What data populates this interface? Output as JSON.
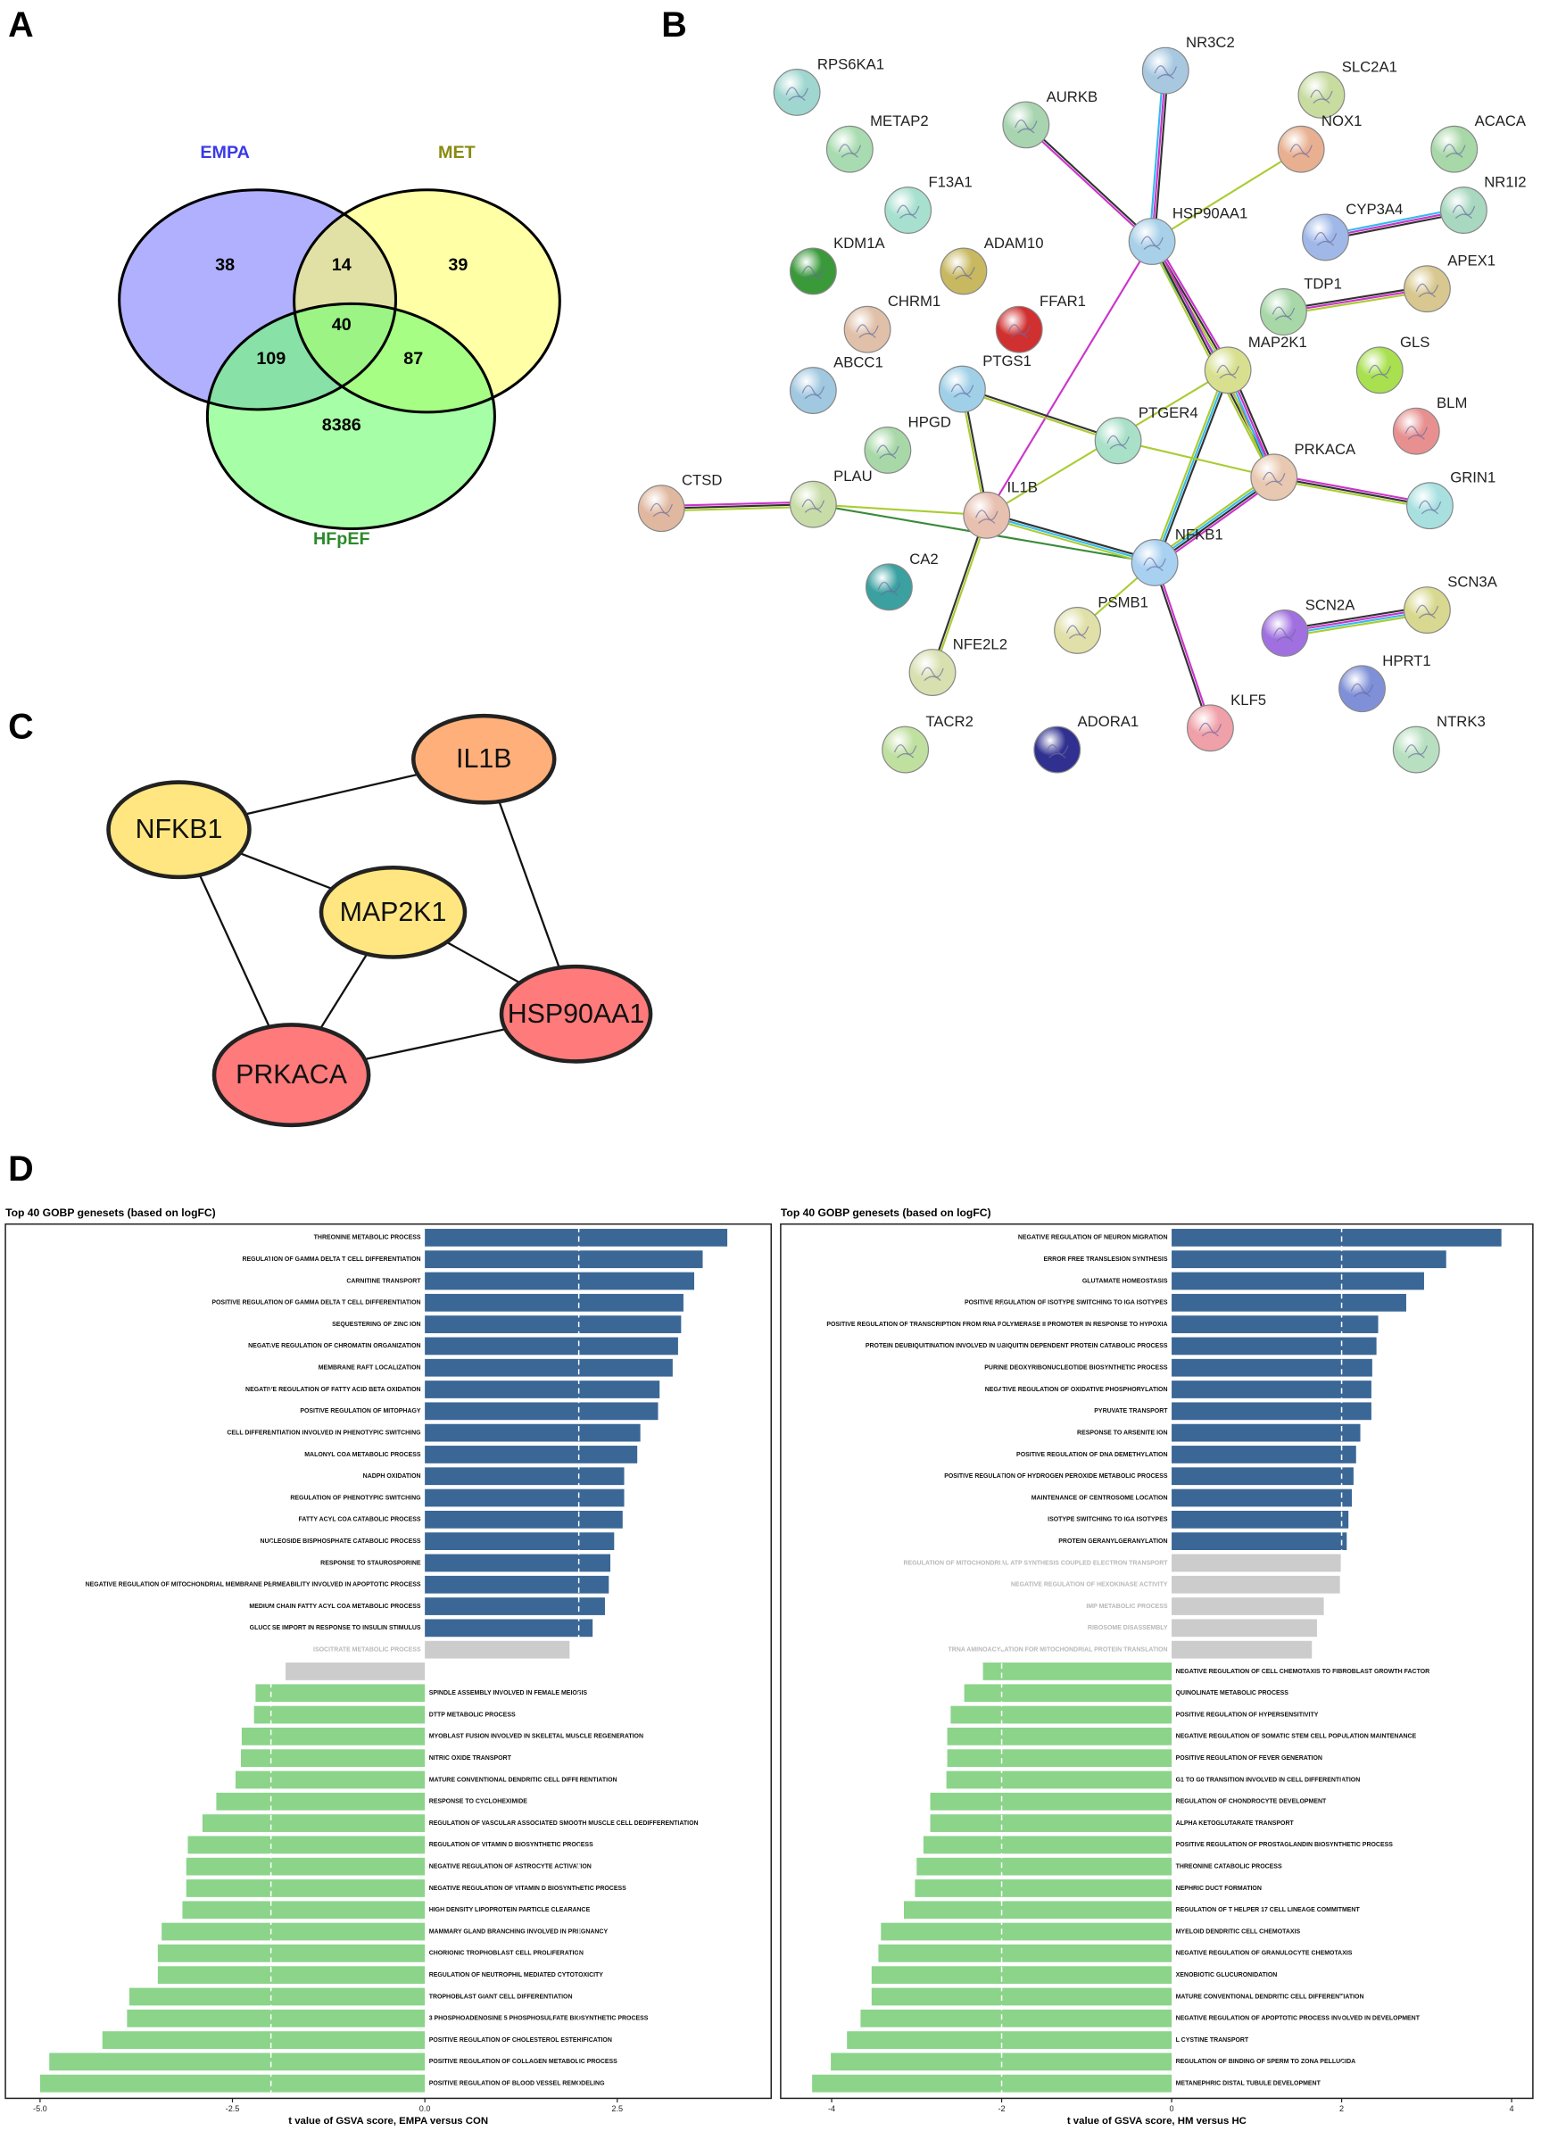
{
  "panel_labels": [
    "A",
    "B",
    "C",
    "D"
  ],
  "chart_data": [
    {
      "type": "venn",
      "sets": [
        {
          "name": "EMPA",
          "color": "#7f7fff",
          "label_color": "#3a3ae8"
        },
        {
          "name": "MET",
          "color": "#ffff70",
          "label_color": "#8a8a10"
        },
        {
          "name": "HFpEF",
          "color": "#70ff70",
          "label_color": "#2a8a2a"
        }
      ],
      "values": [
        38,
        14,
        39,
        40,
        109,
        87,
        8386
      ]
    },
    {
      "type": "network",
      "nodes": [
        {
          "label": "RPS6KA1",
          "color": "#9fd6d0"
        },
        {
          "label": "METAP2",
          "color": "#a8dcb0"
        },
        {
          "label": "AURKB",
          "color": "#a8d4b0"
        },
        {
          "label": "NR3C2",
          "color": "#a8c8e0"
        },
        {
          "label": "SLC2A1",
          "color": "#c8dca0"
        },
        {
          "label": "NOX1",
          "color": "#e8b090"
        },
        {
          "label": "ACACA",
          "color": "#a8d8a8"
        },
        {
          "label": "NR1I2",
          "color": "#a8d8c0"
        },
        {
          "label": "F13A1",
          "color": "#a8e0d0"
        },
        {
          "label": "HSP90AA1",
          "color": "#a8d0e8"
        },
        {
          "label": "CYP3A4",
          "color": "#a0b8e8"
        },
        {
          "label": "KDM1A",
          "color": "#3a9a3a"
        },
        {
          "label": "ADAM10",
          "color": "#c8b860"
        },
        {
          "label": "APEX1",
          "color": "#d8c890"
        },
        {
          "label": "CHRM1",
          "color": "#e0c0a8"
        },
        {
          "label": "FFAR1",
          "color": "#d03030"
        },
        {
          "label": "TDP1",
          "color": "#a8d8a8"
        },
        {
          "label": "MAP2K1",
          "color": "#d8e090"
        },
        {
          "label": "GLS",
          "color": "#a8e050"
        },
        {
          "label": "ABCC1",
          "color": "#a0c8e0"
        },
        {
          "label": "PTGS1",
          "color": "#a0d0e8"
        },
        {
          "label": "BLM",
          "color": "#e89090"
        },
        {
          "label": "HPGD",
          "color": "#a8d8a8"
        },
        {
          "label": "PTGER4",
          "color": "#a8e0c8"
        },
        {
          "label": "PRKACA",
          "color": "#e8c8b0"
        },
        {
          "label": "GRIN1",
          "color": "#a8e0e0"
        },
        {
          "label": "CTSD",
          "color": "#e0b8a0"
        },
        {
          "label": "PLAU",
          "color": "#c8dca8"
        },
        {
          "label": "IL1B",
          "color": "#e8c0b0"
        },
        {
          "label": "NFKB1",
          "color": "#a8d0f0"
        },
        {
          "label": "CA2",
          "color": "#3aa0a0"
        },
        {
          "label": "SCN2A",
          "color": "#a070e0"
        },
        {
          "label": "SCN3A",
          "color": "#d8d890"
        },
        {
          "label": "PSMB1",
          "color": "#e0e0a8"
        },
        {
          "label": "HPRT1",
          "color": "#8090d8"
        },
        {
          "label": "NFE2L2",
          "color": "#d8e0b0"
        },
        {
          "label": "KLF5",
          "color": "#f0a0a8"
        },
        {
          "label": "TACR2",
          "color": "#c0e0a0"
        },
        {
          "label": "ADORA1",
          "color": "#303090"
        },
        {
          "label": "NTRK3",
          "color": "#b8e0c0"
        }
      ],
      "edges": [
        {
          "source": 3,
          "target": 9,
          "colors": [
            "#333333",
            "#cc33cc",
            "#33bbee"
          ]
        },
        {
          "source": 2,
          "target": 9,
          "colors": [
            "#333333",
            "#cc33cc"
          ]
        },
        {
          "source": 5,
          "target": 9,
          "colors": [
            "#aacc33"
          ]
        },
        {
          "source": 7,
          "target": 10,
          "colors": [
            "#333333",
            "#cc33cc",
            "#33bbee"
          ]
        },
        {
          "source": 9,
          "target": 17,
          "colors": [
            "#cc33cc",
            "#333333",
            "#aacc33",
            "#33bbee"
          ]
        },
        {
          "source": 9,
          "target": 24,
          "colors": [
            "#cc33cc",
            "#333333",
            "#aacc33"
          ]
        },
        {
          "source": 9,
          "target": 28,
          "colors": [
            "#cc33cc"
          ]
        },
        {
          "source": 16,
          "target": 13,
          "colors": [
            "#333333",
            "#cc33cc",
            "#aacc33"
          ]
        },
        {
          "source": 17,
          "target": 24,
          "colors": [
            "#333333",
            "#cc33cc",
            "#33bbee",
            "#aacc33"
          ]
        },
        {
          "source": 17,
          "target": 29,
          "colors": [
            "#333333",
            "#33bbee",
            "#aacc33"
          ]
        },
        {
          "source": 17,
          "target": 28,
          "colors": [
            "#aacc33"
          ]
        },
        {
          "source": 20,
          "target": 28,
          "colors": [
            "#333333",
            "#aacc33"
          ]
        },
        {
          "source": 20,
          "target": 23,
          "colors": [
            "#333333",
            "#aacc33"
          ]
        },
        {
          "source": 23,
          "target": 24,
          "colors": [
            "#aacc33"
          ]
        },
        {
          "source": 24,
          "target": 25,
          "colors": [
            "#cc33cc",
            "#333333",
            "#aacc33"
          ]
        },
        {
          "source": 24,
          "target": 29,
          "colors": [
            "#cc33cc",
            "#333333",
            "#33bbee",
            "#aacc33"
          ]
        },
        {
          "source": 26,
          "target": 27,
          "colors": [
            "#cc33cc",
            "#333333",
            "#aacc33"
          ]
        },
        {
          "source": 27,
          "target": 28,
          "colors": [
            "#aacc33"
          ]
        },
        {
          "source": 27,
          "target": 29,
          "colors": [
            "#3a8a3a"
          ]
        },
        {
          "source": 28,
          "target": 29,
          "colors": [
            "#333333",
            "#33bbee",
            "#aacc33"
          ]
        },
        {
          "source": 28,
          "target": 35,
          "colors": [
            "#aacc33",
            "#333333"
          ]
        },
        {
          "source": 29,
          "target": 33,
          "colors": [
            "#aacc33"
          ]
        },
        {
          "source": 29,
          "target": 36,
          "colors": [
            "#cc33cc",
            "#333333"
          ]
        },
        {
          "source": 31,
          "target": 32,
          "colors": [
            "#333333",
            "#cc33cc",
            "#33bbee",
            "#aacc33"
          ]
        }
      ]
    },
    {
      "type": "network",
      "nodes": [
        {
          "label": "IL1B",
          "color": "#ffb07a"
        },
        {
          "label": "NFKB1",
          "color": "#ffe680"
        },
        {
          "label": "MAP2K1",
          "color": "#ffe680"
        },
        {
          "label": "HSP90AA1",
          "color": "#ff7a7a"
        },
        {
          "label": "PRKACA",
          "color": "#ff7a7a"
        }
      ],
      "edges": [
        {
          "source": 1,
          "target": 0
        },
        {
          "source": 1,
          "target": 2
        },
        {
          "source": 1,
          "target": 4
        },
        {
          "source": 0,
          "target": 3
        },
        {
          "source": 2,
          "target": 3
        },
        {
          "source": 2,
          "target": 4
        },
        {
          "source": 4,
          "target": 3
        }
      ]
    },
    {
      "type": "bar",
      "orientation": "horizontal",
      "title": "Top 40 GOBP genesets (based on logFC)",
      "x_label": "t value of GSVA score, EMPA versus CON",
      "categories": [
        "THREONINE METABOLIC PROCESS",
        "REGULATION OF GAMMA DELTA T CELL DIFFERENTIATION",
        "CARNITINE TRANSPORT",
        "POSITIVE REGULATION OF GAMMA DELTA T CELL DIFFERENTIATION",
        "SEQUESTERING OF ZINC ION",
        "NEGATIVE REGULATION OF CHROMATIN ORGANIZATION",
        "MEMBRANE RAFT LOCALIZATION",
        "NEGATIVE REGULATION OF FATTY ACID BETA OXIDATION",
        "POSITIVE REGULATION OF MITOPHAGY",
        "CELL DIFFERENTIATION INVOLVED IN PHENOTYPIC SWITCHING",
        "MALONYL COA METABOLIC PROCESS",
        "NADPH OXIDATION",
        "REGULATION OF PHENOTYPIC SWITCHING",
        "FATTY ACYL COA CATABOLIC PROCESS",
        "NUCLEOSIDE BISPHOSPHATE CATABOLIC PROCESS",
        "RESPONSE TO STAUROSPORINE",
        "NEGATIVE REGULATION OF MITOCHONDRIAL MEMBRANE PERMEABILITY INVOLVED IN APOPTOTIC PROCESS",
        "MEDIUM CHAIN FATTY ACYL COA METABOLIC PROCESS",
        "GLUCOSE IMPORT IN RESPONSE TO INSULIN STIMULUS",
        "ISOCITRATE METABOLIC PROCESS",
        null,
        "SPINDLE ASSEMBLY INVOLVED IN FEMALE MEIOSIS",
        "DTTP METABOLIC PROCESS",
        "MYOBLAST FUSION INVOLVED IN SKELETAL MUSCLE REGENERATION",
        "NITRIC OXIDE TRANSPORT",
        "MATURE CONVENTIONAL DENDRITIC CELL DIFFERENTIATION",
        "RESPONSE TO CYCLOHEXIMIDE",
        "REGULATION OF VASCULAR ASSOCIATED SMOOTH MUSCLE CELL DEDIFFERENTIATION",
        "REGULATION OF VITAMIN D BIOSYNTHETIC PROCESS",
        "NEGATIVE REGULATION OF ASTROCYTE ACTIVATION",
        "NEGATIVE REGULATION OF VITAMIN D BIOSYNTHETIC PROCESS",
        "HIGH DENSITY LIPOPROTEIN PARTICLE CLEARANCE",
        "MAMMARY GLAND BRANCHING INVOLVED IN PREGNANCY",
        "CHORIONIC TROPHOBLAST CELL PROLIFERATION",
        "REGULATION OF NEUTROPHIL MEDIATED CYTOTOXICITY",
        "TROPHOBLAST GIANT CELL DIFFERENTIATION",
        "3 PHOSPHOADENOSINE 5 PHOSPHOSULFATE BIOSYNTHETIC PROCESS",
        "POSITIVE REGULATION OF CHOLESTEROL ESTERIFICATION",
        "POSITIVE REGULATION OF COLLAGEN METABOLIC PROCESS",
        "POSITIVE REGULATION OF BLOOD VESSEL REMODELING"
      ],
      "values": [
        3.93,
        3.61,
        3.5,
        3.36,
        3.33,
        3.29,
        3.22,
        3.05,
        3.03,
        2.8,
        2.76,
        2.59,
        2.59,
        2.57,
        2.46,
        2.41,
        2.39,
        2.34,
        2.18,
        1.88,
        -1.81,
        -2.2,
        -2.22,
        -2.38,
        -2.39,
        -2.46,
        -2.71,
        -2.89,
        -3.08,
        -3.1,
        -3.1,
        -3.15,
        -3.42,
        -3.47,
        -3.47,
        -3.84,
        -3.87,
        -4.19,
        -4.88,
        -5.0
      ],
      "colors": [
        "#3a6796",
        "#3a6796",
        "#3a6796",
        "#3a6796",
        "#3a6796",
        "#3a6796",
        "#3a6796",
        "#3a6796",
        "#3a6796",
        "#3a6796",
        "#3a6796",
        "#3a6796",
        "#3a6796",
        "#3a6796",
        "#3a6796",
        "#3a6796",
        "#3a6796",
        "#3a6796",
        "#3a6796",
        "#cccccc",
        "#cccccc",
        "#8bd48a",
        "#8bd48a",
        "#8bd48a",
        "#8bd48a",
        "#8bd48a",
        "#8bd48a",
        "#8bd48a",
        "#8bd48a",
        "#8bd48a",
        "#8bd48a",
        "#8bd48a",
        "#8bd48a",
        "#8bd48a",
        "#8bd48a",
        "#8bd48a",
        "#8bd48a",
        "#8bd48a",
        "#8bd48a",
        "#8bd48a"
      ],
      "ns_color": "#cccccc",
      "xlim": [
        -5.45,
        4.5
      ],
      "xticks": [
        {
          "value": -5,
          "label": "-5.0"
        },
        {
          "value": -2.5,
          "label": "-2.5"
        },
        {
          "value": 0,
          "label": "0.0"
        },
        2.5
      ],
      "reference_lines": [
        -2,
        2
      ]
    },
    {
      "type": "bar",
      "orientation": "horizontal",
      "title": "Top 40 GOBP genesets (based on logFC)",
      "x_label": "t value of GSVA score, HM versus HC",
      "categories": [
        "NEGATIVE REGULATION OF NEURON MIGRATION",
        "ERROR FREE TRANSLESION SYNTHESIS",
        "GLUTAMATE HOMEOSTASIS",
        "POSITIVE REGULATION OF ISOTYPE SWITCHING TO IGA ISOTYPES",
        "POSITIVE REGULATION OF TRANSCRIPTION FROM RNA POLYMERASE II PROMOTER IN RESPONSE TO HYPOXIA",
        "PROTEIN DEUBIQUITINATION INVOLVED IN UBIQUITIN DEPENDENT PROTEIN CATABOLIC PROCESS",
        "PURINE DEOXYRIBONUCLEOTIDE BIOSYNTHETIC PROCESS",
        "NEGATIVE REGULATION OF OXIDATIVE PHOSPHORYLATION",
        "PYRUVATE TRANSPORT",
        "RESPONSE TO ARSENITE ION",
        "POSITIVE REGULATION OF DNA DEMETHYLATION",
        "POSITIVE REGULATION OF HYDROGEN PEROXIDE METABOLIC PROCESS",
        "MAINTENANCE OF CENTROSOME LOCATION",
        "ISOTYPE SWITCHING TO IGA ISOTYPES",
        "PROTEIN GERANYLGERANYLATION",
        "REGULATION OF MITOCHONDRIAL ATP SYNTHESIS COUPLED ELECTRON TRANSPORT",
        "NEGATIVE REGULATION OF HEXOKINASE ACTIVITY",
        "IMP METABOLIC PROCESS",
        "RIBOSOME DISASSEMBLY",
        "TRNA AMINOACYLATION FOR MITOCHONDRIAL PROTEIN TRANSLATION",
        "NEGATIVE REGULATION OF CELL CHEMOTAXIS TO FIBROBLAST GROWTH FACTOR",
        "QUINOLINATE METABOLIC PROCESS",
        "POSITIVE REGULATION OF HYPERSENSITIVITY",
        "NEGATIVE REGULATION OF SOMATIC STEM CELL POPULATION MAINTENANCE",
        "POSITIVE REGULATION OF FEVER GENERATION",
        "G1 TO G0 TRANSITION INVOLVED IN CELL DIFFERENTIATION",
        "REGULATION OF CHONDROCYTE DEVELOPMENT",
        "ALPHA KETOGLUTARATE TRANSPORT",
        "POSITIVE REGULATION OF PROSTAGLANDIN BIOSYNTHETIC PROCESS",
        "THREONINE CATABOLIC PROCESS",
        "NEPHRIC DUCT FORMATION",
        "REGULATION OF T HELPER 17 CELL LINEAGE COMMITMENT",
        "MYELOID DENDRITIC CELL CHEMOTAXIS",
        "NEGATIVE REGULATION OF GRANULOCYTE CHEMOTAXIS",
        "XENOBIOTIC GLUCURONIDATION",
        "MATURE CONVENTIONAL DENDRITIC CELL DIFFERENTIATION",
        "NEGATIVE REGULATION OF APOPTOTIC PROCESS INVOLVED IN DEVELOPMENT",
        "L CYSTINE TRANSPORT",
        "REGULATION OF BINDING OF SPERM TO ZONA PELLUCIDA",
        "METANEPHRIC DISTAL TUBULE DEVELOPMENT"
      ],
      "values": [
        3.88,
        3.23,
        2.97,
        2.76,
        2.43,
        2.41,
        2.36,
        2.35,
        2.35,
        2.22,
        2.17,
        2.14,
        2.12,
        2.08,
        2.06,
        1.99,
        1.98,
        1.79,
        1.71,
        1.65,
        -2.22,
        -2.44,
        -2.6,
        -2.64,
        -2.64,
        -2.65,
        -2.84,
        -2.84,
        -2.92,
        -3.0,
        -3.02,
        -3.15,
        -3.42,
        -3.45,
        -3.53,
        -3.53,
        -3.66,
        -3.82,
        -4.01,
        -4.23
      ],
      "colors": [
        "#3a6796",
        "#3a6796",
        "#3a6796",
        "#3a6796",
        "#3a6796",
        "#3a6796",
        "#3a6796",
        "#3a6796",
        "#3a6796",
        "#3a6796",
        "#3a6796",
        "#3a6796",
        "#3a6796",
        "#3a6796",
        "#3a6796",
        "#cccccc",
        "#cccccc",
        "#cccccc",
        "#cccccc",
        "#cccccc",
        "#8bd48a",
        "#8bd48a",
        "#8bd48a",
        "#8bd48a",
        "#8bd48a",
        "#8bd48a",
        "#8bd48a",
        "#8bd48a",
        "#8bd48a",
        "#8bd48a",
        "#8bd48a",
        "#8bd48a",
        "#8bd48a",
        "#8bd48a",
        "#8bd48a",
        "#8bd48a",
        "#8bd48a",
        "#8bd48a",
        "#8bd48a",
        "#8bd48a"
      ],
      "ns_color": "#cccccc",
      "xlim": [
        -4.6,
        4.25
      ],
      "xticks": [
        -4,
        -2,
        0,
        2,
        4
      ],
      "reference_lines": [
        -2,
        2
      ]
    }
  ]
}
